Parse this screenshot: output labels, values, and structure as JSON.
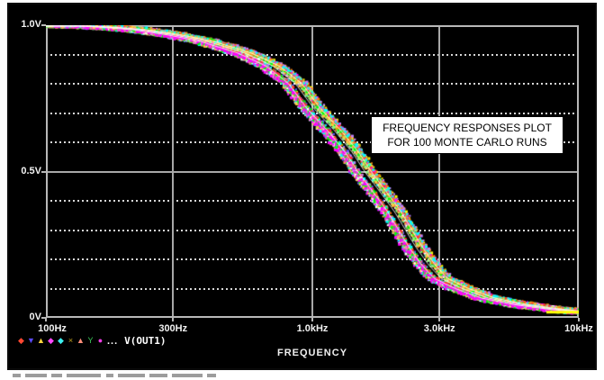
{
  "figure": {
    "background": "#000000",
    "annotation_box": {
      "line1": "FREQUENCY RESPONSES PLOT",
      "line2": "FOR 100 MONTE CARLO RUNS"
    },
    "x_axis_title": "FREQUENCY",
    "legend": {
      "symbols": [
        {
          "name": "diamond-marker",
          "glyph": "◆",
          "color": "#ff4832"
        },
        {
          "name": "triangle-down-marker",
          "glyph": "▼",
          "color": "#5a4aff"
        },
        {
          "name": "triangle-up-marker",
          "glyph": "▲",
          "color": "#ffd53e"
        },
        {
          "name": "diamond-marker",
          "glyph": "◆",
          "color": "#ff49ff"
        },
        {
          "name": "diamond-marker",
          "glyph": "◆",
          "color": "#3df0f0"
        },
        {
          "name": "cross-marker",
          "glyph": "×",
          "color": "#c0a01e"
        },
        {
          "name": "triangle-up-marker",
          "glyph": "▲",
          "color": "#ff8d7a"
        },
        {
          "name": "wye-marker",
          "glyph": "Y",
          "color": "#3cc85a"
        },
        {
          "name": "dot-marker",
          "glyph": "●",
          "color": "#f23ce6"
        }
      ],
      "ellipsis": "...",
      "trace_label": "V(OUT1)"
    }
  },
  "chart_data": {
    "type": "line",
    "title": "FREQUENCY RESPONSES PLOT FOR 100 MONTE CARLO RUNS",
    "xlabel": "FREQUENCY",
    "ylabel": "",
    "x_scale": "log",
    "x_range_hz": [
      100,
      10000
    ],
    "y_range_v": [
      0,
      1
    ],
    "x_ticks": [
      {
        "hz": 100,
        "label": "100Hz"
      },
      {
        "hz": 300,
        "label": "300Hz"
      },
      {
        "hz": 1000,
        "label": "1.0kHz"
      },
      {
        "hz": 3000,
        "label": "3.0kHz"
      },
      {
        "hz": 10000,
        "label": "10kHz"
      }
    ],
    "y_ticks": [
      {
        "v": 1.0,
        "label": "1.0V"
      },
      {
        "v": 0.5,
        "label": "0.5V"
      },
      {
        "v": 0.0,
        "label": "0V"
      }
    ],
    "y_minor_grid_step_v": 0.1,
    "major_gridlines_x_hz": [
      300,
      1000,
      3000
    ],
    "major_gridline_y_v": 0.5,
    "n_runs": 100,
    "trace_name": "V(OUT1)",
    "nominal_response_hz_v": [
      [
        100,
        1.0
      ],
      [
        130,
        0.998
      ],
      [
        170,
        0.993
      ],
      [
        220,
        0.985
      ],
      [
        300,
        0.967
      ],
      [
        400,
        0.944
      ],
      [
        550,
        0.905
      ],
      [
        700,
        0.861
      ],
      [
        850,
        0.802
      ],
      [
        1000,
        0.715
      ],
      [
        1200,
        0.638
      ],
      [
        1400,
        0.563
      ],
      [
        1550,
        0.5
      ],
      [
        1700,
        0.452
      ],
      [
        2000,
        0.365
      ],
      [
        2400,
        0.245
      ],
      [
        2700,
        0.18
      ],
      [
        3000,
        0.135
      ],
      [
        3600,
        0.1
      ],
      [
        4500,
        0.068
      ],
      [
        6000,
        0.045
      ],
      [
        8000,
        0.03
      ],
      [
        10000,
        0.021
      ]
    ],
    "run_spread_log10_decades": 0.05,
    "marker_palette": [
      "#ffffff",
      "#ffff00",
      "#ff00ff",
      "#00ffff",
      "#00ff00",
      "#ff3030",
      "#5858ff",
      "#ff8000",
      "#ff80c0",
      "#80ff80",
      "#ffc840",
      "#c080ff"
    ],
    "grid_color_major": "#a8a8a8",
    "grid_color_minor": "#d8d8d8",
    "axis_box_color": "#b8b8b8"
  }
}
